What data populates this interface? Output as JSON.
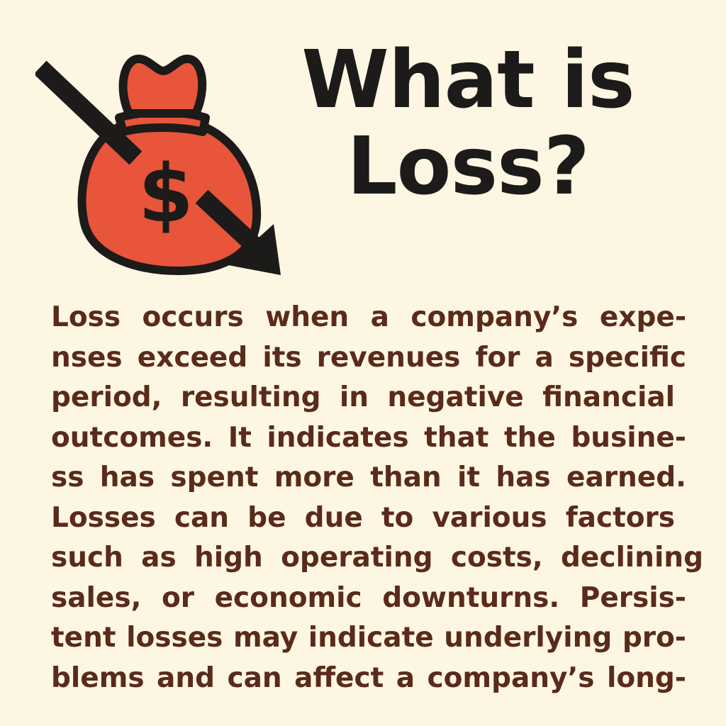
{
  "heading": {
    "line1": "What is",
    "line2": "Loss?"
  },
  "paragraph": {
    "lines": [
      "Loss occurs when a company’s expe-",
      "nses exceed its revenues for a specific",
      "period, resulting in negative financial",
      "outcomes. It indicates that the busine-",
      "ss has spent more than it has earned.",
      "Losses can be due to various factors",
      "such as high operating costs, declining",
      "sales, or economic downturns. Persis-",
      "tent losses may indicate underlying pro-",
      "blems and can affect a company’s long-"
    ]
  },
  "illustration": {
    "icon": "money-bag-icon",
    "arrow_icon": "downward-arrow-icon",
    "symbol": "$",
    "bag_color": "#e8553a",
    "outline_color": "#1c1b19"
  }
}
